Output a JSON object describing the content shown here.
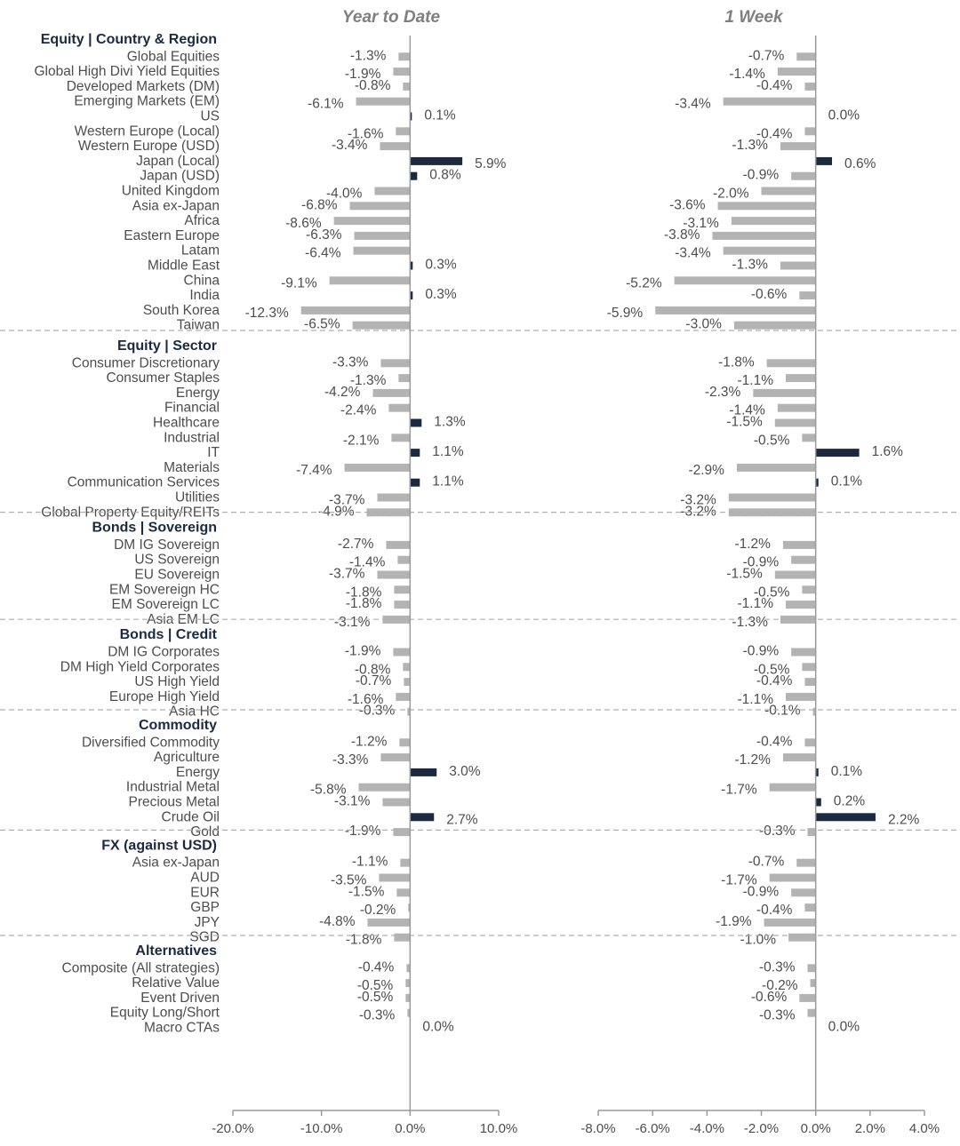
{
  "chart_data": {
    "type": "bar",
    "orientation": "horizontal",
    "panels": [
      {
        "title": "Year to Date",
        "xlim": [
          -20,
          10
        ],
        "ticks": [
          -20,
          -10,
          0,
          10
        ],
        "tick_labels": [
          "-20.0%",
          "-10.0%",
          "0.0%",
          "10.0%"
        ]
      },
      {
        "title": "1 Week",
        "xlim": [
          -8,
          4
        ],
        "ticks": [
          -8,
          -6,
          -4,
          -2,
          0,
          2,
          4
        ],
        "tick_labels": [
          "-8.0%",
          "-6.0%",
          "-4.0%",
          "-2.0%",
          "0.0%",
          "2.0%",
          "4.0%"
        ]
      }
    ],
    "colors": {
      "positive": "#1b2a41",
      "negative": "#b3b3b3",
      "axis": "#9a9a9a",
      "divider": "#b0b0b0"
    },
    "sections": [
      {
        "title": "Equity | Country & Region",
        "rows": [
          {
            "label": "Global Equities",
            "ytd": -1.3,
            "ytd_label": "-1.3%",
            "week": -0.7,
            "week_label": "-0.7%"
          },
          {
            "label": "Global High Divi Yield Equities",
            "ytd": -1.9,
            "ytd_label": "-1.9%",
            "week": -1.4,
            "week_label": "-1.4%"
          },
          {
            "label": "Developed Markets (DM)",
            "ytd": -0.8,
            "ytd_label": "-0.8%",
            "week": -0.4,
            "week_label": "-0.4%"
          },
          {
            "label": "Emerging Markets (EM)",
            "ytd": -6.1,
            "ytd_label": "-6.1%",
            "week": -3.4,
            "week_label": "-3.4%"
          },
          {
            "label": "US",
            "ytd": 0.1,
            "ytd_label": "0.1%",
            "week": 0.0,
            "week_label": "0.0%"
          },
          {
            "label": "Western Europe (Local)",
            "ytd": -1.6,
            "ytd_label": "-1.6%",
            "week": -0.4,
            "week_label": "-0.4%"
          },
          {
            "label": "Western Europe (USD)",
            "ytd": -3.4,
            "ytd_label": "-3.4%",
            "week": -1.3,
            "week_label": "-1.3%"
          },
          {
            "label": "Japan (Local)",
            "ytd": 5.9,
            "ytd_label": "5.9%",
            "week": 0.6,
            "week_label": "0.6%"
          },
          {
            "label": "Japan (USD)",
            "ytd": 0.8,
            "ytd_label": "0.8%",
            "week": -0.9,
            "week_label": "-0.9%"
          },
          {
            "label": "United Kingdom",
            "ytd": -4.0,
            "ytd_label": "-4.0%",
            "week": -2.0,
            "week_label": "-2.0%"
          },
          {
            "label": "Asia ex-Japan",
            "ytd": -6.8,
            "ytd_label": "-6.8%",
            "week": -3.6,
            "week_label": "-3.6%"
          },
          {
            "label": "Africa",
            "ytd": -8.6,
            "ytd_label": "-8.6%",
            "week": -3.1,
            "week_label": "-3.1%"
          },
          {
            "label": "Eastern Europe",
            "ytd": -6.3,
            "ytd_label": "-6.3%",
            "week": -3.8,
            "week_label": "-3.8%"
          },
          {
            "label": "Latam",
            "ytd": -6.4,
            "ytd_label": "-6.4%",
            "week": -3.4,
            "week_label": "-3.4%"
          },
          {
            "label": "Middle East",
            "ytd": 0.3,
            "ytd_label": "0.3%",
            "week": -1.3,
            "week_label": "-1.3%"
          },
          {
            "label": "China",
            "ytd": -9.1,
            "ytd_label": "-9.1%",
            "week": -5.2,
            "week_label": "-5.2%"
          },
          {
            "label": "India",
            "ytd": 0.3,
            "ytd_label": "0.3%",
            "week": -0.6,
            "week_label": "-0.6%"
          },
          {
            "label": "South Korea",
            "ytd": -12.3,
            "ytd_label": "-12.3%",
            "week": -5.9,
            "week_label": "-5.9%"
          },
          {
            "label": "Taiwan",
            "ytd": -6.5,
            "ytd_label": "-6.5%",
            "week": -3.0,
            "week_label": "-3.0%"
          }
        ]
      },
      {
        "title": "Equity | Sector",
        "rows": [
          {
            "label": "Consumer Discretionary",
            "ytd": -3.3,
            "ytd_label": "-3.3%",
            "week": -1.8,
            "week_label": "-1.8%"
          },
          {
            "label": "Consumer Staples",
            "ytd": -1.3,
            "ytd_label": "-1.3%",
            "week": -1.1,
            "week_label": "-1.1%"
          },
          {
            "label": "Energy",
            "ytd": -4.2,
            "ytd_label": "-4.2%",
            "week": -2.3,
            "week_label": "-2.3%"
          },
          {
            "label": "Financial",
            "ytd": -2.4,
            "ytd_label": "-2.4%",
            "week": -1.4,
            "week_label": "-1.4%"
          },
          {
            "label": "Healthcare",
            "ytd": 1.3,
            "ytd_label": "1.3%",
            "week": -1.5,
            "week_label": "-1.5%"
          },
          {
            "label": "Industrial",
            "ytd": -2.1,
            "ytd_label": "-2.1%",
            "week": -0.5,
            "week_label": "-0.5%"
          },
          {
            "label": "IT",
            "ytd": 1.1,
            "ytd_label": "1.1%",
            "week": 1.6,
            "week_label": "1.6%"
          },
          {
            "label": "Materials",
            "ytd": -7.4,
            "ytd_label": "-7.4%",
            "week": -2.9,
            "week_label": "-2.9%"
          },
          {
            "label": "Communication Services",
            "ytd": 1.1,
            "ytd_label": "1.1%",
            "week": 0.1,
            "week_label": "0.1%"
          },
          {
            "label": "Utilities",
            "ytd": -3.7,
            "ytd_label": "-3.7%",
            "week": -3.2,
            "week_label": "-3.2%"
          },
          {
            "label": "Global Property Equity/REITs",
            "ytd": -4.9,
            "ytd_label": "-4.9%",
            "week": -3.2,
            "week_label": "-3.2%"
          }
        ]
      },
      {
        "title": "Bonds | Sovereign",
        "rows": [
          {
            "label": "DM IG Sovereign",
            "ytd": -2.7,
            "ytd_label": "-2.7%",
            "week": -1.2,
            "week_label": "-1.2%"
          },
          {
            "label": "US Sovereign",
            "ytd": -1.4,
            "ytd_label": "-1.4%",
            "week": -0.9,
            "week_label": "-0.9%"
          },
          {
            "label": "EU Sovereign",
            "ytd": -3.7,
            "ytd_label": "-3.7%",
            "week": -1.5,
            "week_label": "-1.5%"
          },
          {
            "label": "EM Sovereign HC",
            "ytd": -1.8,
            "ytd_label": "-1.8%",
            "week": -0.5,
            "week_label": "-0.5%"
          },
          {
            "label": "EM Sovereign LC",
            "ytd": -1.8,
            "ytd_label": "-1.8%",
            "week": -1.1,
            "week_label": "-1.1%"
          },
          {
            "label": "Asia EM LC",
            "ytd": -3.1,
            "ytd_label": "-3.1%",
            "week": -1.3,
            "week_label": "-1.3%"
          }
        ]
      },
      {
        "title": "Bonds | Credit",
        "rows": [
          {
            "label": "DM IG Corporates",
            "ytd": -1.9,
            "ytd_label": "-1.9%",
            "week": -0.9,
            "week_label": "-0.9%"
          },
          {
            "label": "DM High Yield Corporates",
            "ytd": -0.8,
            "ytd_label": "-0.8%",
            "week": -0.5,
            "week_label": "-0.5%"
          },
          {
            "label": "US High Yield",
            "ytd": -0.7,
            "ytd_label": "-0.7%",
            "week": -0.4,
            "week_label": "-0.4%"
          },
          {
            "label": "Europe High Yield",
            "ytd": -1.6,
            "ytd_label": "-1.6%",
            "week": -1.1,
            "week_label": "-1.1%"
          },
          {
            "label": "Asia HC",
            "ytd": -0.3,
            "ytd_label": "-0.3%",
            "week": -0.1,
            "week_label": "-0.1%"
          }
        ]
      },
      {
        "title": "Commodity",
        "rows": [
          {
            "label": "Diversified Commodity",
            "ytd": -1.2,
            "ytd_label": "-1.2%",
            "week": -0.4,
            "week_label": "-0.4%"
          },
          {
            "label": "Agriculture",
            "ytd": -3.3,
            "ytd_label": "-3.3%",
            "week": -1.2,
            "week_label": "-1.2%"
          },
          {
            "label": "Energy",
            "ytd": 3.0,
            "ytd_label": "3.0%",
            "week": 0.1,
            "week_label": "0.1%"
          },
          {
            "label": "Industrial Metal",
            "ytd": -5.8,
            "ytd_label": "-5.8%",
            "week": -1.7,
            "week_label": "-1.7%"
          },
          {
            "label": "Precious Metal",
            "ytd": -3.1,
            "ytd_label": "-3.1%",
            "week": 0.2,
            "week_label": "0.2%"
          },
          {
            "label": "Crude Oil",
            "ytd": 2.7,
            "ytd_label": "2.7%",
            "week": 2.2,
            "week_label": "2.2%"
          },
          {
            "label": "Gold",
            "ytd": -1.9,
            "ytd_label": "-1.9%",
            "week": -0.3,
            "week_label": "-0.3%"
          }
        ]
      },
      {
        "title": "FX (against USD)",
        "rows": [
          {
            "label": "Asia ex-Japan",
            "ytd": -1.1,
            "ytd_label": "-1.1%",
            "week": -0.7,
            "week_label": "-0.7%"
          },
          {
            "label": "AUD",
            "ytd": -3.5,
            "ytd_label": "-3.5%",
            "week": -1.7,
            "week_label": "-1.7%"
          },
          {
            "label": "EUR",
            "ytd": -1.5,
            "ytd_label": "-1.5%",
            "week": -0.9,
            "week_label": "-0.9%"
          },
          {
            "label": "GBP",
            "ytd": -0.2,
            "ytd_label": "-0.2%",
            "week": -0.4,
            "week_label": "-0.4%"
          },
          {
            "label": "JPY",
            "ytd": -4.8,
            "ytd_label": "-4.8%",
            "week": -1.9,
            "week_label": "-1.9%"
          },
          {
            "label": "SGD",
            "ytd": -1.8,
            "ytd_label": "-1.8%",
            "week": -1.0,
            "week_label": "-1.0%"
          }
        ]
      },
      {
        "title": "Alternatives",
        "rows": [
          {
            "label": "Composite (All strategies)",
            "ytd": -0.4,
            "ytd_label": "-0.4%",
            "week": -0.3,
            "week_label": "-0.3%"
          },
          {
            "label": "Relative Value",
            "ytd": -0.5,
            "ytd_label": "-0.5%",
            "week": -0.2,
            "week_label": "-0.2%"
          },
          {
            "label": "Event Driven",
            "ytd": -0.5,
            "ytd_label": "-0.5%",
            "week": -0.6,
            "week_label": "-0.6%"
          },
          {
            "label": "Equity Long/Short",
            "ytd": -0.3,
            "ytd_label": "-0.3%",
            "week": -0.3,
            "week_label": "-0.3%"
          },
          {
            "label": "Macro CTAs",
            "ytd": 0.0,
            "ytd_label": "0.0%",
            "week": 0.0,
            "week_label": "0.0%"
          }
        ]
      }
    ]
  }
}
